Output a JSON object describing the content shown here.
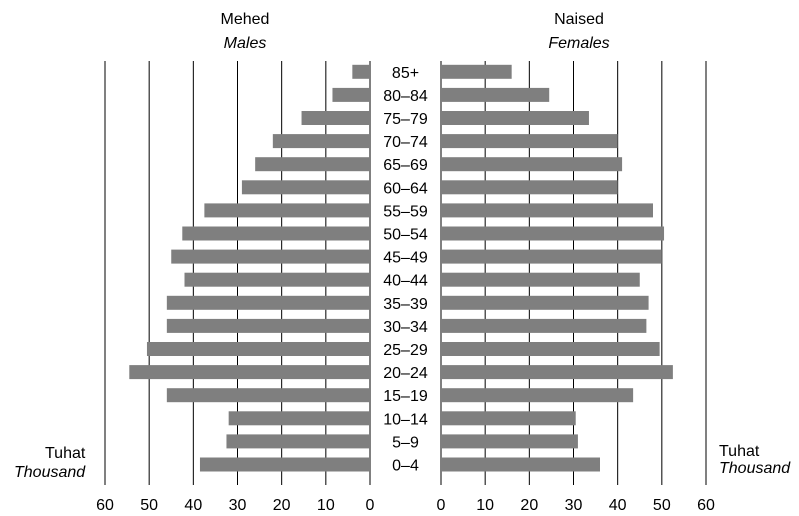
{
  "chart_data": {
    "type": "bar",
    "orientation": "horizontal",
    "layout": "population-pyramid",
    "categories": [
      "0–4",
      "5–9",
      "10–14",
      "15–19",
      "20–24",
      "25–29",
      "30–34",
      "35–39",
      "40–44",
      "45–49",
      "50–54",
      "55–59",
      "60–64",
      "65–69",
      "70–74",
      "75–79",
      "80–84",
      "85+"
    ],
    "series": [
      {
        "name": "Mehed",
        "name_en": "Males",
        "values": [
          38.5,
          32.5,
          32.0,
          46.0,
          54.5,
          50.5,
          46.0,
          46.0,
          42.0,
          45.0,
          42.5,
          37.5,
          29.0,
          26.0,
          22.0,
          15.5,
          8.5,
          4.0
        ]
      },
      {
        "name": "Naised",
        "name_en": "Females",
        "values": [
          36.0,
          31.0,
          30.5,
          43.5,
          52.5,
          49.5,
          46.5,
          47.0,
          45.0,
          50.0,
          50.5,
          48.0,
          40.0,
          41.0,
          40.0,
          33.5,
          24.5,
          16.0
        ]
      }
    ],
    "xlabel": "Tuhat",
    "xlabel_en": "Thousand",
    "xlim": [
      0,
      60
    ],
    "xticks": [
      "0",
      "10",
      "20",
      "30",
      "40",
      "50",
      "60"
    ],
    "grid": true,
    "bar_color": "#7f7f7f",
    "grid_color": "#000000"
  }
}
